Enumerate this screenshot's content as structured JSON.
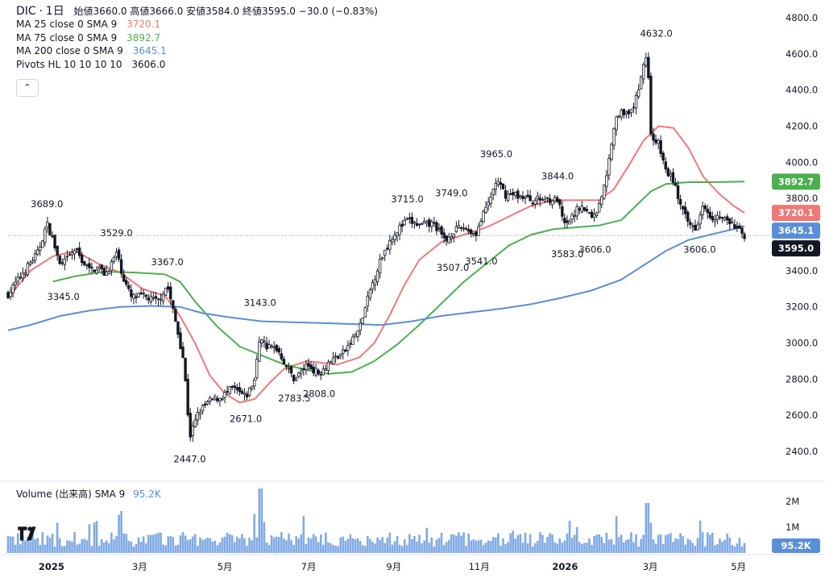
{
  "header": {
    "symbol": "DIC",
    "sep": "·",
    "interval": "1日",
    "ohlc_text": "始値3660.0 高値3666.0 安値3584.0 終値3595.0",
    "change_text": "−30.0 (−0.83%)"
  },
  "indicators": [
    {
      "label": "MA 25 close 0 SMA 9",
      "value": "3720.1",
      "color": "#f07878"
    },
    {
      "label": "MA 75 close 0 SMA 9",
      "value": "3892.7",
      "color": "#4caf50"
    },
    {
      "label": "MA 200 close 0 SMA 9",
      "value": "3645.1",
      "color": "#5b8ed8"
    },
    {
      "label": "Pivots HL 10 10 10 10",
      "value": "3606.0",
      "color": "#131722"
    }
  ],
  "collapse_icon": "chevron-up-icon",
  "collapse_glyph": "⌃",
  "volume_legend": {
    "label": "Volume (出来高) SMA 9",
    "value": "95.2K",
    "color": "#5b8ed8"
  },
  "chart_data": {
    "type": "candlestick",
    "price_axis": {
      "range": [
        2300,
        4850
      ],
      "ticks": [
        "4800.0",
        "4600.0",
        "4400.0",
        "4200.0",
        "4000.0",
        "3800.0",
        "3600.0",
        "3400.0",
        "3200.0",
        "3000.0",
        "2800.0",
        "2600.0",
        "2400.0"
      ]
    },
    "volume_axis": {
      "ticks": [
        "2M",
        "1M"
      ]
    },
    "time_axis": {
      "labels": [
        {
          "text": "2025",
          "bold": true,
          "t": 0.058
        },
        {
          "text": "3月",
          "bold": false,
          "t": 0.176
        },
        {
          "text": "5月",
          "bold": false,
          "t": 0.29
        },
        {
          "text": "7月",
          "bold": false,
          "t": 0.402
        },
        {
          "text": "9月",
          "bold": false,
          "t": 0.516
        },
        {
          "text": "11月",
          "bold": false,
          "t": 0.63
        },
        {
          "text": "2026",
          "bold": true,
          "t": 0.745
        },
        {
          "text": "3月",
          "bold": false,
          "t": 0.859
        },
        {
          "text": "5月",
          "bold": false,
          "t": 0.977
        }
      ]
    },
    "last_close": 3595.0,
    "price_badges": [
      {
        "value": "3892.7",
        "num": 3892.7,
        "bg": "#4caf50"
      },
      {
        "value": "3720.1",
        "num": 3720.1,
        "bg": "#f07878"
      },
      {
        "value": "3645.1",
        "num": 3645.1,
        "bg": "#5b8ed8"
      },
      {
        "value": "3595.0",
        "num": 3595.0,
        "bg": "#131722"
      }
    ],
    "volume_badge": {
      "value": "95.2K",
      "bg": "#5b8ed8"
    },
    "pivots": [
      {
        "label": "3689.0",
        "t": 0.052,
        "price": 3689,
        "type": "high"
      },
      {
        "label": "3345.0",
        "t": 0.074,
        "price": 3345,
        "type": "low"
      },
      {
        "label": "3529.0",
        "t": 0.145,
        "price": 3529,
        "type": "high"
      },
      {
        "label": "3367.0",
        "t": 0.213,
        "price": 3367,
        "type": "high"
      },
      {
        "label": "2447.0",
        "t": 0.243,
        "price": 2447,
        "type": "low"
      },
      {
        "label": "2671.0",
        "t": 0.318,
        "price": 2671,
        "type": "low"
      },
      {
        "label": "3143.0",
        "t": 0.337,
        "price": 3143,
        "type": "high"
      },
      {
        "label": "2783.5",
        "t": 0.383,
        "price": 2783.5,
        "type": "low"
      },
      {
        "label": "2808.0",
        "t": 0.416,
        "price": 2808,
        "type": "low"
      },
      {
        "label": "3715.0",
        "t": 0.534,
        "price": 3715,
        "type": "high"
      },
      {
        "label": "3507.0",
        "t": 0.595,
        "price": 3507,
        "type": "low"
      },
      {
        "label": "3749.0",
        "t": 0.593,
        "price": 3749,
        "type": "high"
      },
      {
        "label": "3541.0",
        "t": 0.633,
        "price": 3541,
        "type": "low"
      },
      {
        "label": "3965.0",
        "t": 0.653,
        "price": 3965,
        "type": "high"
      },
      {
        "label": "3844.0",
        "t": 0.735,
        "price": 3844,
        "type": "high"
      },
      {
        "label": "3583.0",
        "t": 0.748,
        "price": 3583,
        "type": "low"
      },
      {
        "label": "3606.0",
        "t": 0.785,
        "price": 3606,
        "type": "low"
      },
      {
        "label": "4632.0",
        "t": 0.867,
        "price": 4632,
        "type": "high"
      },
      {
        "label": "3606.0",
        "t": 0.925,
        "price": 3606,
        "type": "low"
      }
    ],
    "ma_series": [
      {
        "name": "MA 25",
        "color": "#f07878",
        "points": [
          [
            0,
            3250
          ],
          [
            0.03,
            3400
          ],
          [
            0.06,
            3480
          ],
          [
            0.09,
            3510
          ],
          [
            0.12,
            3440
          ],
          [
            0.15,
            3390
          ],
          [
            0.18,
            3300
          ],
          [
            0.21,
            3260
          ],
          [
            0.23,
            3150
          ],
          [
            0.25,
            3000
          ],
          [
            0.27,
            2820
          ],
          [
            0.29,
            2720
          ],
          [
            0.31,
            2670
          ],
          [
            0.33,
            2690
          ],
          [
            0.35,
            2780
          ],
          [
            0.37,
            2860
          ],
          [
            0.4,
            2900
          ],
          [
            0.42,
            2890
          ],
          [
            0.44,
            2880
          ],
          [
            0.47,
            2920
          ],
          [
            0.49,
            3000
          ],
          [
            0.51,
            3150
          ],
          [
            0.53,
            3320
          ],
          [
            0.55,
            3460
          ],
          [
            0.58,
            3560
          ],
          [
            0.61,
            3600
          ],
          [
            0.64,
            3640
          ],
          [
            0.67,
            3700
          ],
          [
            0.7,
            3760
          ],
          [
            0.73,
            3790
          ],
          [
            0.76,
            3790
          ],
          [
            0.79,
            3790
          ],
          [
            0.81,
            3850
          ],
          [
            0.83,
            3980
          ],
          [
            0.85,
            4120
          ],
          [
            0.87,
            4200
          ],
          [
            0.89,
            4190
          ],
          [
            0.91,
            4080
          ],
          [
            0.93,
            3920
          ],
          [
            0.95,
            3830
          ],
          [
            0.97,
            3760
          ],
          [
            0.985,
            3720
          ]
        ]
      },
      {
        "name": "MA 75",
        "color": "#4caf50",
        "points": [
          [
            0.06,
            3340
          ],
          [
            0.09,
            3370
          ],
          [
            0.13,
            3395
          ],
          [
            0.17,
            3390
          ],
          [
            0.21,
            3380
          ],
          [
            0.23,
            3340
          ],
          [
            0.25,
            3230
          ],
          [
            0.28,
            3090
          ],
          [
            0.31,
            2980
          ],
          [
            0.34,
            2930
          ],
          [
            0.37,
            2880
          ],
          [
            0.4,
            2850
          ],
          [
            0.43,
            2830
          ],
          [
            0.46,
            2840
          ],
          [
            0.49,
            2900
          ],
          [
            0.52,
            2990
          ],
          [
            0.55,
            3100
          ],
          [
            0.58,
            3220
          ],
          [
            0.61,
            3340
          ],
          [
            0.64,
            3440
          ],
          [
            0.67,
            3540
          ],
          [
            0.7,
            3600
          ],
          [
            0.73,
            3630
          ],
          [
            0.76,
            3640
          ],
          [
            0.79,
            3650
          ],
          [
            0.82,
            3680
          ],
          [
            0.84,
            3760
          ],
          [
            0.86,
            3840
          ],
          [
            0.88,
            3880
          ],
          [
            0.91,
            3890
          ],
          [
            0.94,
            3890
          ],
          [
            0.985,
            3893
          ]
        ]
      },
      {
        "name": "MA 200",
        "color": "#5b8ed8",
        "points": [
          [
            0,
            3070
          ],
          [
            0.03,
            3100
          ],
          [
            0.07,
            3150
          ],
          [
            0.11,
            3180
          ],
          [
            0.15,
            3200
          ],
          [
            0.19,
            3205
          ],
          [
            0.23,
            3200
          ],
          [
            0.26,
            3165
          ],
          [
            0.3,
            3140
          ],
          [
            0.34,
            3120
          ],
          [
            0.38,
            3115
          ],
          [
            0.42,
            3110
          ],
          [
            0.46,
            3105
          ],
          [
            0.5,
            3100
          ],
          [
            0.54,
            3120
          ],
          [
            0.58,
            3150
          ],
          [
            0.62,
            3170
          ],
          [
            0.66,
            3190
          ],
          [
            0.7,
            3215
          ],
          [
            0.74,
            3250
          ],
          [
            0.78,
            3290
          ],
          [
            0.82,
            3350
          ],
          [
            0.85,
            3430
          ],
          [
            0.88,
            3510
          ],
          [
            0.91,
            3570
          ],
          [
            0.94,
            3600
          ],
          [
            0.96,
            3620
          ],
          [
            0.985,
            3645
          ]
        ]
      }
    ],
    "price_path": [
      [
        0,
        3270
      ],
      [
        0.02,
        3390
      ],
      [
        0.04,
        3500
      ],
      [
        0.052,
        3660
      ],
      [
        0.06,
        3570
      ],
      [
        0.07,
        3420
      ],
      [
        0.08,
        3470
      ],
      [
        0.09,
        3520
      ],
      [
        0.1,
        3450
      ],
      [
        0.11,
        3400
      ],
      [
        0.12,
        3420
      ],
      [
        0.13,
        3380
      ],
      [
        0.14,
        3450
      ],
      [
        0.145,
        3500
      ],
      [
        0.155,
        3350
      ],
      [
        0.165,
        3250
      ],
      [
        0.18,
        3260
      ],
      [
        0.2,
        3230
      ],
      [
        0.213,
        3320
      ],
      [
        0.225,
        3100
      ],
      [
        0.235,
        2900
      ],
      [
        0.243,
        2480
      ],
      [
        0.255,
        2620
      ],
      [
        0.27,
        2680
      ],
      [
        0.285,
        2700
      ],
      [
        0.3,
        2750
      ],
      [
        0.318,
        2700
      ],
      [
        0.33,
        2800
      ],
      [
        0.337,
        3050
      ],
      [
        0.345,
        2980
      ],
      [
        0.36,
        2970
      ],
      [
        0.375,
        2850
      ],
      [
        0.383,
        2800
      ],
      [
        0.4,
        2880
      ],
      [
        0.416,
        2830
      ],
      [
        0.43,
        2900
      ],
      [
        0.45,
        2950
      ],
      [
        0.47,
        3080
      ],
      [
        0.485,
        3300
      ],
      [
        0.5,
        3480
      ],
      [
        0.515,
        3600
      ],
      [
        0.534,
        3680
      ],
      [
        0.55,
        3650
      ],
      [
        0.57,
        3660
      ],
      [
        0.585,
        3560
      ],
      [
        0.595,
        3620
      ],
      [
        0.61,
        3640
      ],
      [
        0.625,
        3600
      ],
      [
        0.633,
        3680
      ],
      [
        0.645,
        3800
      ],
      [
        0.653,
        3900
      ],
      [
        0.665,
        3820
      ],
      [
        0.68,
        3820
      ],
      [
        0.7,
        3790
      ],
      [
        0.72,
        3800
      ],
      [
        0.735,
        3790
      ],
      [
        0.745,
        3640
      ],
      [
        0.755,
        3700
      ],
      [
        0.765,
        3760
      ],
      [
        0.775,
        3720
      ],
      [
        0.785,
        3700
      ],
      [
        0.8,
        3900
      ],
      [
        0.81,
        4200
      ],
      [
        0.82,
        4300
      ],
      [
        0.83,
        4250
      ],
      [
        0.84,
        4350
      ],
      [
        0.85,
        4550
      ],
      [
        0.855,
        4600
      ],
      [
        0.86,
        4150
      ],
      [
        0.87,
        4100
      ],
      [
        0.88,
        3950
      ],
      [
        0.89,
        3900
      ],
      [
        0.9,
        3750
      ],
      [
        0.91,
        3660
      ],
      [
        0.92,
        3640
      ],
      [
        0.93,
        3780
      ],
      [
        0.94,
        3700
      ],
      [
        0.95,
        3700
      ],
      [
        0.96,
        3680
      ],
      [
        0.97,
        3650
      ],
      [
        0.985,
        3595
      ]
    ]
  }
}
